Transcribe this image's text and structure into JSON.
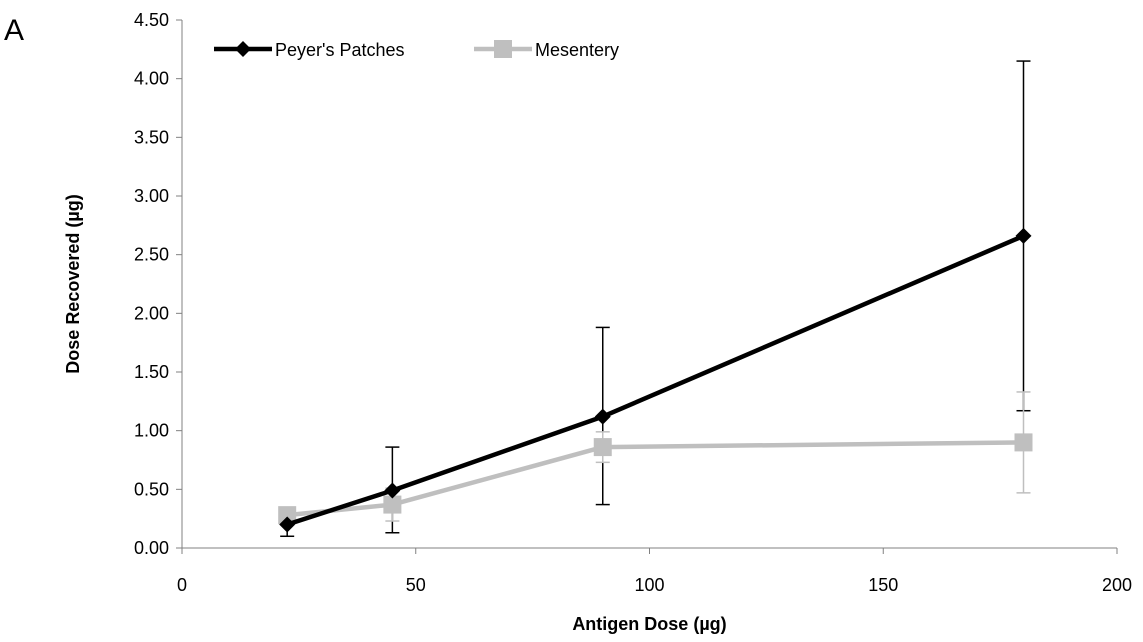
{
  "panel_label": "A",
  "chart_data": {
    "type": "line",
    "title": "",
    "xlabel": "Antigen Dose (µg)",
    "ylabel": "Dose Recovered (µg)",
    "xlim": [
      0,
      200
    ],
    "ylim": [
      0,
      4.5
    ],
    "x_ticks": [
      0,
      50,
      100,
      150,
      200
    ],
    "x_tick_labels": [
      "0",
      "50",
      "100",
      "150",
      "200"
    ],
    "y_ticks": [
      0,
      0.5,
      1,
      1.5,
      2,
      2.5,
      3,
      3.5,
      4,
      4.5
    ],
    "y_tick_labels": [
      "0.00",
      "0.50",
      "1.00",
      "1.50",
      "2.00",
      "2.50",
      "3.00",
      "3.50",
      "4.00",
      "4.50"
    ],
    "grid": false,
    "legend_position": "top-left",
    "series": [
      {
        "name": "Peyer's Patches",
        "color": "#000000",
        "marker": "diamond",
        "x": [
          22.5,
          45,
          90,
          180
        ],
        "y": [
          0.2,
          0.49,
          1.12,
          2.66
        ],
        "error_low": [
          0.1,
          0.36,
          0.75,
          1.49
        ],
        "error_high": [
          0.1,
          0.37,
          0.76,
          1.49
        ]
      },
      {
        "name": "Mesentery",
        "color": "#bfbfbf",
        "marker": "square",
        "x": [
          22.5,
          45,
          90,
          180
        ],
        "y": [
          0.28,
          0.37,
          0.86,
          0.9
        ],
        "error_low": [
          0.04,
          0.14,
          0.13,
          0.43
        ],
        "error_high": [
          0.04,
          0.14,
          0.13,
          0.43
        ]
      }
    ]
  }
}
